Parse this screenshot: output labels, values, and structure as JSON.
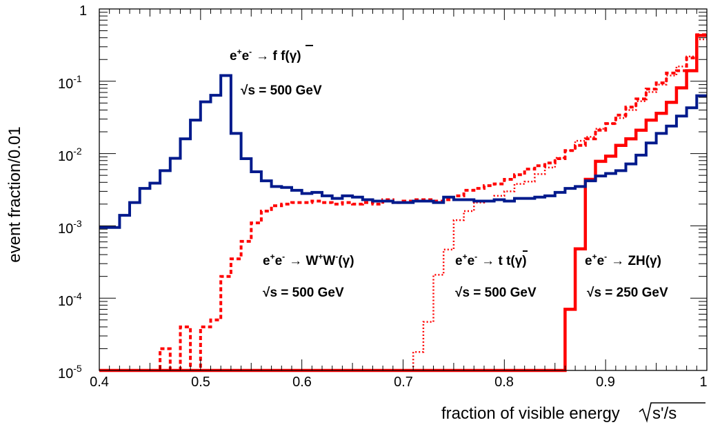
{
  "chart_data": {
    "type": "line",
    "xlabel": "fraction of visible energy",
    "xlabel_math": "s'/s",
    "ylabel": "event fraction/0.01",
    "xlim": [
      0.4,
      1.0
    ],
    "ylim": [
      1e-05,
      1
    ],
    "yscale": "log",
    "x_tick_labels": [
      "0.4",
      "0.5",
      "0.6",
      "0.7",
      "0.8",
      "0.9",
      "1"
    ],
    "y_tick_labels": [
      {
        "value": 1e-05,
        "base": "10",
        "exp": "-5"
      },
      {
        "value": 0.0001,
        "base": "10",
        "exp": "-4"
      },
      {
        "value": 0.001,
        "base": "10",
        "exp": "-3"
      },
      {
        "value": 0.01,
        "base": "10",
        "exp": "-2"
      },
      {
        "value": 0.1,
        "base": "10",
        "exp": "-1"
      },
      {
        "value": 1,
        "base": "1",
        "exp": ""
      }
    ],
    "colors": {
      "ffbar": "#001a8c",
      "red": "#ff0000"
    },
    "series": [
      {
        "style": "solid-blue",
        "x": [
          0.4,
          0.42,
          0.43,
          0.44,
          0.45,
          0.46,
          0.47,
          0.48,
          0.49,
          0.5,
          0.51,
          0.52,
          0.53,
          0.54,
          0.55,
          0.56,
          0.57,
          0.58,
          0.59,
          0.6,
          0.61,
          0.62,
          0.63,
          0.64,
          0.65,
          0.66,
          0.67,
          0.68,
          0.69,
          0.7,
          0.71,
          0.72,
          0.73,
          0.74,
          0.75,
          0.76,
          0.77,
          0.78,
          0.79,
          0.8,
          0.81,
          0.82,
          0.83,
          0.84,
          0.85,
          0.86,
          0.87,
          0.88,
          0.89,
          0.9,
          0.91,
          0.92,
          0.93,
          0.94,
          0.95,
          0.96,
          0.97,
          0.98,
          0.99,
          1.0
        ],
        "y": [
          0.00095,
          0.0014,
          0.0021,
          0.0033,
          0.0039,
          0.0058,
          0.0086,
          0.016,
          0.029,
          0.052,
          0.064,
          0.12,
          0.019,
          0.0085,
          0.0056,
          0.0042,
          0.0035,
          0.0034,
          0.0031,
          0.0028,
          0.0029,
          0.0026,
          0.0024,
          0.0026,
          0.0025,
          0.0023,
          0.0022,
          0.0022,
          0.0021,
          0.0021,
          0.0022,
          0.0022,
          0.0021,
          0.0025,
          0.0023,
          0.0023,
          0.0022,
          0.0022,
          0.0023,
          0.0022,
          0.0024,
          0.0024,
          0.0025,
          0.0026,
          0.0029,
          0.0033,
          0.0035,
          0.0042,
          0.0049,
          0.0053,
          0.0058,
          0.0072,
          0.0095,
          0.014,
          0.019,
          0.024,
          0.033,
          0.043,
          0.063,
          0.25
        ]
      },
      {
        "style": "dashed-red",
        "x": [
          0.4,
          0.46,
          0.47,
          0.48,
          0.49,
          0.5,
          0.51,
          0.52,
          0.53,
          0.54,
          0.55,
          0.56,
          0.57,
          0.58,
          0.59,
          0.6,
          0.61,
          0.62,
          0.63,
          0.64,
          0.65,
          0.66,
          0.67,
          0.68,
          0.69,
          0.7,
          0.71,
          0.72,
          0.73,
          0.74,
          0.75,
          0.76,
          0.77,
          0.78,
          0.79,
          0.8,
          0.81,
          0.82,
          0.83,
          0.84,
          0.85,
          0.86,
          0.87,
          0.88,
          0.89,
          0.9,
          0.91,
          0.92,
          0.93,
          0.94,
          0.95,
          0.96,
          0.97,
          0.98,
          0.99,
          1.0
        ],
        "y": [
          1e-05,
          2e-05,
          1e-05,
          4e-05,
          1e-05,
          4e-05,
          5e-05,
          0.0002,
          0.00035,
          0.00061,
          0.0011,
          0.0016,
          0.0019,
          0.002,
          0.0021,
          0.0021,
          0.0022,
          0.0021,
          0.002,
          0.0021,
          0.002,
          0.0021,
          0.002,
          0.0023,
          0.0021,
          0.0022,
          0.0023,
          0.0023,
          0.0022,
          0.0023,
          0.0026,
          0.0031,
          0.0033,
          0.0036,
          0.0038,
          0.0044,
          0.0051,
          0.0061,
          0.0068,
          0.0074,
          0.0085,
          0.011,
          0.013,
          0.016,
          0.021,
          0.026,
          0.034,
          0.044,
          0.057,
          0.078,
          0.095,
          0.13,
          0.14,
          0.21,
          0.44,
          0.45
        ]
      },
      {
        "style": "dotted-red",
        "x": [
          0.4,
          0.71,
          0.72,
          0.73,
          0.74,
          0.75,
          0.76,
          0.77,
          0.78,
          0.79,
          0.8,
          0.81,
          0.82,
          0.83,
          0.84,
          0.85,
          0.86,
          0.87,
          0.88,
          0.89,
          0.9,
          0.91,
          0.92,
          0.93,
          0.94,
          0.95,
          0.96,
          0.97,
          0.98,
          0.99,
          1.0
        ],
        "y": [
          1e-05,
          1.8e-05,
          4.7e-05,
          0.00021,
          0.00047,
          0.0012,
          0.0016,
          0.0021,
          0.0022,
          0.0026,
          0.003,
          0.0038,
          0.0041,
          0.0052,
          0.0064,
          0.0087,
          0.011,
          0.015,
          0.017,
          0.022,
          0.026,
          0.031,
          0.04,
          0.053,
          0.071,
          0.09,
          0.12,
          0.16,
          0.22,
          0.38,
          0.45
        ]
      },
      {
        "style": "thick-solid-red",
        "x": [
          0.4,
          0.86,
          0.87,
          0.88,
          0.89,
          0.9,
          0.91,
          0.92,
          0.93,
          0.94,
          0.95,
          0.96,
          0.97,
          0.98,
          0.99,
          1.0
        ],
        "y": [
          1e-05,
          7e-05,
          0.00048,
          0.0044,
          0.0078,
          0.0092,
          0.013,
          0.016,
          0.021,
          0.029,
          0.036,
          0.051,
          0.081,
          0.14,
          0.43,
          0.45
        ]
      }
    ],
    "annotations": {
      "ffbar": {
        "process_pre": "e",
        "process_mid": "→ f ",
        "process_bar": "f",
        "process_post": "(γ)",
        "energy_val": "s = 500 GeV",
        "sqrt": "√"
      },
      "ww": {
        "process_pre": "e",
        "process_mid": "→ W",
        "process_mid2": "W",
        "process_post": "(γ)",
        "energy_val": "s = 500 GeV",
        "sqrt": "√"
      },
      "tt": {
        "process_pre": "e",
        "process_mid": "→ t ",
        "process_bar": "t",
        "process_post": "(γ)",
        "energy_val": "s = 500 GeV",
        "sqrt": "√"
      },
      "zh": {
        "process_pre": "e",
        "process_mid": "→ ZH(γ)",
        "energy_val": "s = 250 GeV",
        "sqrt": "√"
      },
      "sup_plus": "+",
      "sup_minus": "-"
    }
  }
}
